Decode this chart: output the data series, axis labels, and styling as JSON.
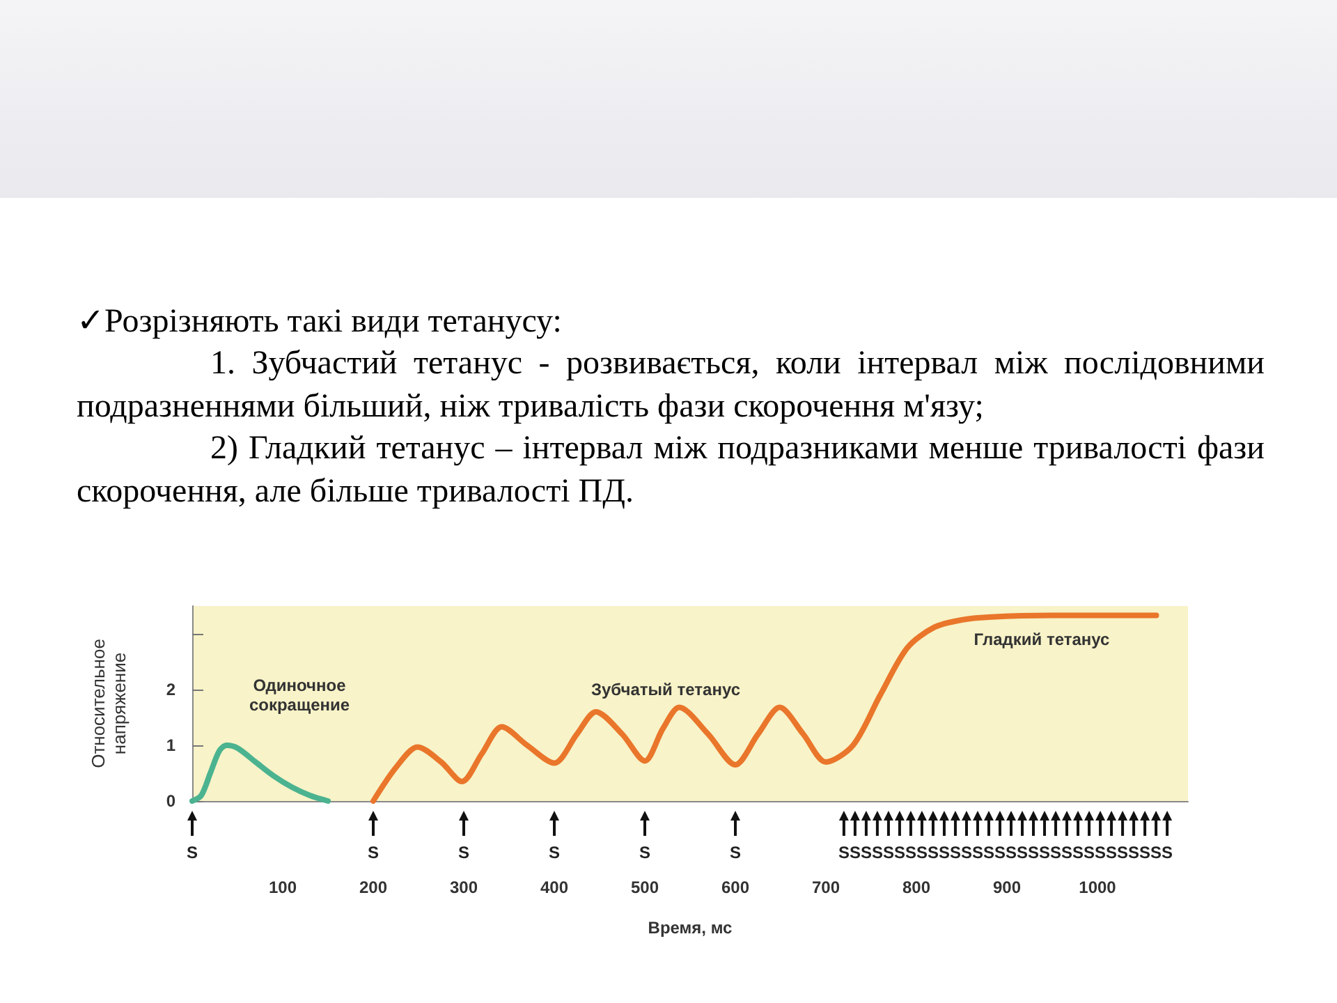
{
  "chart_data": {
    "type": "line",
    "title": "✓Розрізняють такі види тетанусу:",
    "subtitle": "1. Зубчастий тетанус - розвивається, коли інтервал між послідовними подразненнями більший, ніж тривалість фази скорочення м'язу;\n2) Гладкий тетанус – інтервал між подразниками менше тривалості фази скорочення, але більше тривалості ПД.",
    "xlabel": "Время, мс",
    "ylabel": "Относительное\nнапряжение",
    "xlim": [
      0,
      1100
    ],
    "xticks": [
      100,
      200,
      300,
      400,
      500,
      600,
      700,
      800,
      900,
      1000
    ],
    "ylim": [
      0,
      3.5
    ],
    "yticks": [
      0,
      1,
      2,
      {
        "value": 3,
        "label": null
      }
    ],
    "grid": false,
    "marker": "none",
    "line_style": "solid",
    "series": [
      {
        "color": "#4bb38f",
        "x": [
          0,
          10,
          20,
          30,
          38,
          50,
          70,
          90,
          110,
          130,
          150
        ],
        "values": [
          0,
          0.1,
          0.5,
          0.9,
          1.0,
          0.95,
          0.7,
          0.45,
          0.25,
          0.1,
          0
        ]
      },
      {
        "color": "#e9762b",
        "x": [
          200,
          225,
          249,
          275,
          298,
          320,
          342,
          370,
          400,
          425,
          446,
          475,
          500,
          520,
          538,
          570,
          600,
          625,
          649,
          675,
          700,
          730,
          760,
          790,
          820,
          850,
          880,
          950,
          1065
        ],
        "values": [
          0,
          0.6,
          0.97,
          0.7,
          0.35,
          0.85,
          1.33,
          1.0,
          0.68,
          1.2,
          1.6,
          1.2,
          0.72,
          1.3,
          1.68,
          1.2,
          0.65,
          1.2,
          1.68,
          1.2,
          0.7,
          1.0,
          1.9,
          2.75,
          3.12,
          3.25,
          3.3,
          3.33,
          3.33
        ]
      }
    ],
    "annotations": [
      "Одиночное\nсокращение",
      "Зубчатый тетанус",
      "Гладкий тетанус",
      "S",
      "S",
      "S",
      "S",
      "S",
      "S",
      "SSSSSSSSSSSSSSSSSSSSSSSSSSSSSS"
    ]
  }
}
